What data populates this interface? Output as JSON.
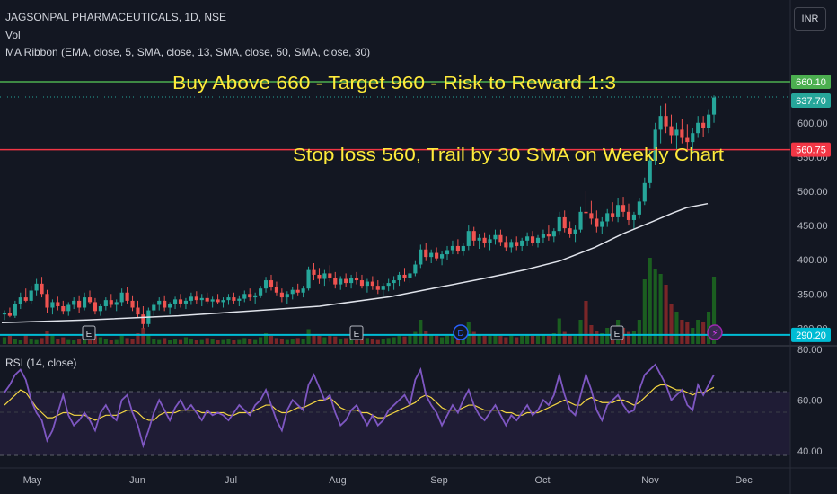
{
  "header": {
    "symbol_line": "JAGSONPAL PHARMACEUTICALS, 1D, NSE",
    "vol_label": "Vol",
    "ma_ribbon_label": "MA Ribbon (EMA, close, 5, SMA, close, 13, SMA, close, 50, SMA, close, 30)",
    "currency_button": "INR"
  },
  "annotations": {
    "headline": "Buy Above 660 - Target 960 - Risk to Reward 1:3",
    "stoploss": "Stop loss 560, Trail by 30 SMA on Weekly Chart"
  },
  "rsi": {
    "label": "RSI (14, close)"
  },
  "colors": {
    "background": "#131722",
    "up": "#26a69a",
    "down": "#ef5350",
    "annotation_text": "#ffeb3b",
    "target_line": "#4caf50",
    "stop_line": "#f23645",
    "low_line": "#00bcd4",
    "sma_line": "#e0e3eb",
    "rsi_line": "#7e57c2",
    "rsi_ma": "#f5d743"
  },
  "chart_data": {
    "type": "candlestick",
    "x_labels": [
      "May",
      "Jun",
      "Jul",
      "Aug",
      "Sep",
      "Oct",
      "Nov",
      "Dec"
    ],
    "price_axis_ticks": [
      "600.00",
      "550.00",
      "500.00",
      "450.00",
      "400.00",
      "350.00",
      "300.00"
    ],
    "price_markers": [
      {
        "value": 660.1,
        "label": "660.10",
        "color": "#4caf50",
        "kind": "horizontal-line"
      },
      {
        "value": 637.7,
        "label": "637.70",
        "color": "#26a69a",
        "kind": "last-price"
      },
      {
        "value": 560.75,
        "label": "560.75",
        "color": "#f23645",
        "kind": "horizontal-line"
      },
      {
        "value": 290.2,
        "label": "290.20",
        "color": "#00bcd4",
        "kind": "horizontal-line"
      }
    ],
    "price_range": [
      290,
      685
    ],
    "candles": [
      [
        320,
        326,
        312,
        322
      ],
      [
        322,
        330,
        316,
        318
      ],
      [
        318,
        340,
        315,
        335
      ],
      [
        335,
        352,
        328,
        345
      ],
      [
        345,
        358,
        338,
        340
      ],
      [
        340,
        362,
        336,
        355
      ],
      [
        355,
        372,
        348,
        365
      ],
      [
        365,
        375,
        345,
        350
      ],
      [
        350,
        356,
        322,
        330
      ],
      [
        330,
        342,
        320,
        338
      ],
      [
        338,
        346,
        326,
        332
      ],
      [
        332,
        340,
        320,
        325
      ],
      [
        325,
        338,
        318,
        334
      ],
      [
        334,
        345,
        328,
        340
      ],
      [
        340,
        348,
        322,
        330
      ],
      [
        330,
        352,
        326,
        345
      ],
      [
        345,
        355,
        335,
        338
      ],
      [
        338,
        344,
        320,
        325
      ],
      [
        325,
        336,
        318,
        332
      ],
      [
        332,
        345,
        326,
        341
      ],
      [
        341,
        350,
        330,
        334
      ],
      [
        334,
        342,
        325,
        338
      ],
      [
        338,
        358,
        332,
        352
      ],
      [
        352,
        360,
        336,
        340
      ],
      [
        340,
        348,
        325,
        330
      ],
      [
        330,
        340,
        315,
        320
      ],
      [
        320,
        332,
        300,
        306
      ],
      [
        306,
        330,
        302,
        326
      ],
      [
        326,
        338,
        318,
        334
      ],
      [
        334,
        345,
        326,
        340
      ],
      [
        340,
        348,
        325,
        330
      ],
      [
        330,
        338,
        320,
        335
      ],
      [
        335,
        346,
        328,
        342
      ],
      [
        342,
        350,
        330,
        336
      ],
      [
        336,
        344,
        328,
        340
      ],
      [
        340,
        352,
        334,
        346
      ],
      [
        346,
        354,
        336,
        341
      ],
      [
        341,
        350,
        332,
        344
      ],
      [
        344,
        352,
        336,
        339
      ],
      [
        339,
        346,
        330,
        342
      ],
      [
        342,
        350,
        335,
        338
      ],
      [
        338,
        345,
        330,
        341
      ],
      [
        341,
        350,
        334,
        345
      ],
      [
        345,
        352,
        336,
        340
      ],
      [
        340,
        348,
        332,
        343
      ],
      [
        343,
        355,
        338,
        350
      ],
      [
        350,
        358,
        340,
        345
      ],
      [
        345,
        352,
        336,
        348
      ],
      [
        348,
        362,
        344,
        358
      ],
      [
        358,
        375,
        352,
        370
      ],
      [
        370,
        378,
        355,
        360
      ],
      [
        360,
        368,
        348,
        352
      ],
      [
        352,
        358,
        338,
        345
      ],
      [
        345,
        354,
        335,
        350
      ],
      [
        350,
        360,
        342,
        356
      ],
      [
        356,
        365,
        348,
        352
      ],
      [
        352,
        362,
        345,
        358
      ],
      [
        358,
        390,
        355,
        385
      ],
      [
        385,
        395,
        370,
        378
      ],
      [
        378,
        388,
        365,
        372
      ],
      [
        372,
        385,
        362,
        380
      ],
      [
        380,
        392,
        368,
        374
      ],
      [
        374,
        382,
        358,
        364
      ],
      [
        364,
        376,
        356,
        372
      ],
      [
        372,
        380,
        360,
        366
      ],
      [
        366,
        378,
        358,
        374
      ],
      [
        374,
        382,
        364,
        370
      ],
      [
        370,
        378,
        358,
        362
      ],
      [
        362,
        372,
        352,
        368
      ],
      [
        368,
        376,
        356,
        362
      ],
      [
        362,
        370,
        350,
        356
      ],
      [
        356,
        366,
        348,
        362
      ],
      [
        362,
        372,
        354,
        366
      ],
      [
        366,
        376,
        356,
        370
      ],
      [
        370,
        382,
        362,
        378
      ],
      [
        378,
        388,
        368,
        374
      ],
      [
        374,
        384,
        366,
        380
      ],
      [
        380,
        398,
        376,
        393
      ],
      [
        393,
        422,
        388,
        415
      ],
      [
        415,
        425,
        398,
        404
      ],
      [
        404,
        415,
        395,
        410
      ],
      [
        410,
        418,
        398,
        402
      ],
      [
        402,
        412,
        392,
        408
      ],
      [
        408,
        420,
        400,
        414
      ],
      [
        414,
        428,
        408,
        420
      ],
      [
        420,
        430,
        408,
        412
      ],
      [
        412,
        425,
        406,
        420
      ],
      [
        420,
        450,
        414,
        442
      ],
      [
        442,
        448,
        420,
        428
      ],
      [
        428,
        438,
        416,
        432
      ],
      [
        432,
        440,
        418,
        424
      ],
      [
        424,
        436,
        414,
        430
      ],
      [
        430,
        444,
        422,
        436
      ],
      [
        436,
        444,
        420,
        426
      ],
      [
        426,
        434,
        412,
        418
      ],
      [
        418,
        430,
        410,
        426
      ],
      [
        426,
        434,
        414,
        420
      ],
      [
        420,
        432,
        412,
        428
      ],
      [
        428,
        440,
        420,
        434
      ],
      [
        434,
        442,
        420,
        424
      ],
      [
        424,
        436,
        418,
        432
      ],
      [
        432,
        444,
        424,
        438
      ],
      [
        438,
        450,
        428,
        434
      ],
      [
        434,
        446,
        426,
        442
      ],
      [
        442,
        470,
        436,
        462
      ],
      [
        462,
        472,
        440,
        446
      ],
      [
        446,
        456,
        432,
        438
      ],
      [
        438,
        450,
        426,
        444
      ],
      [
        444,
        478,
        440,
        470
      ],
      [
        470,
        500,
        458,
        468
      ],
      [
        468,
        486,
        452,
        460
      ],
      [
        460,
        472,
        440,
        448
      ],
      [
        448,
        462,
        438,
        456
      ],
      [
        456,
        474,
        448,
        468
      ],
      [
        468,
        484,
        456,
        462
      ],
      [
        462,
        490,
        455,
        480
      ],
      [
        480,
        492,
        462,
        470
      ],
      [
        470,
        482,
        450,
        458
      ],
      [
        458,
        470,
        444,
        466
      ],
      [
        466,
        490,
        460,
        485
      ],
      [
        485,
        520,
        480,
        512
      ],
      [
        512,
        560,
        505,
        545
      ],
      [
        545,
        600,
        538,
        590
      ],
      [
        590,
        625,
        570,
        610
      ],
      [
        610,
        628,
        585,
        595
      ],
      [
        595,
        612,
        570,
        582
      ],
      [
        582,
        600,
        560,
        590
      ],
      [
        590,
        606,
        570,
        578
      ],
      [
        578,
        598,
        560,
        572
      ],
      [
        572,
        592,
        555,
        585
      ],
      [
        585,
        610,
        578,
        600
      ],
      [
        600,
        610,
        580,
        592
      ],
      [
        592,
        620,
        585,
        612
      ],
      [
        612,
        640,
        600,
        637
      ]
    ],
    "sma30": [
      [
        0,
        308
      ],
      [
        0.12,
        312
      ],
      [
        0.25,
        318
      ],
      [
        0.35,
        325
      ],
      [
        0.45,
        332
      ],
      [
        0.55,
        346
      ],
      [
        0.62,
        360
      ],
      [
        0.68,
        372
      ],
      [
        0.74,
        385
      ],
      [
        0.79,
        398
      ],
      [
        0.84,
        418
      ],
      [
        0.88,
        438
      ],
      [
        0.92,
        455
      ],
      [
        0.95,
        468
      ],
      [
        0.97,
        476
      ],
      [
        1.0,
        482
      ]
    ],
    "volume": [
      0.25,
      0.3,
      0.2,
      0.15,
      0.35,
      0.2,
      0.18,
      0.22,
      0.5,
      0.3,
      0.2,
      0.25,
      0.18,
      0.15,
      0.2,
      0.3,
      0.22,
      0.35,
      0.25,
      0.2,
      0.15,
      0.18,
      0.3,
      0.22,
      0.2,
      0.4,
      0.6,
      0.35,
      0.2,
      0.18,
      0.22,
      0.15,
      0.2,
      0.18,
      0.25,
      0.2,
      0.15,
      0.18,
      0.22,
      0.2,
      0.15,
      0.18,
      0.2,
      0.16,
      0.18,
      0.22,
      0.2,
      0.18,
      0.25,
      0.4,
      0.3,
      0.22,
      0.2,
      0.18,
      0.2,
      0.22,
      0.2,
      0.55,
      0.35,
      0.3,
      0.25,
      0.3,
      0.28,
      0.2,
      0.22,
      0.2,
      0.18,
      0.2,
      0.22,
      0.2,
      0.18,
      0.2,
      0.22,
      0.25,
      0.3,
      0.28,
      0.3,
      0.45,
      0.9,
      0.5,
      0.35,
      0.3,
      0.25,
      0.3,
      0.35,
      0.3,
      0.3,
      0.8,
      0.45,
      0.35,
      0.3,
      0.3,
      0.35,
      0.3,
      0.25,
      0.3,
      0.25,
      0.3,
      0.35,
      0.3,
      0.3,
      0.35,
      0.3,
      0.4,
      0.95,
      0.45,
      0.35,
      0.3,
      0.9,
      1.6,
      0.7,
      0.5,
      0.4,
      0.6,
      0.5,
      0.9,
      0.6,
      0.45,
      0.5,
      0.9,
      2.4,
      3.2,
      2.8,
      2.6,
      2.2,
      1.5,
      1.2,
      0.9,
      0.8,
      0.6,
      0.9,
      0.8,
      1.2,
      2.5
    ],
    "rsi": {
      "ylim": [
        30,
        80
      ],
      "ticks": [
        "80.00",
        "60.00",
        "40.00"
      ],
      "values": [
        63,
        66,
        70,
        72,
        68,
        60,
        55,
        52,
        44,
        48,
        55,
        62,
        54,
        50,
        52,
        55,
        52,
        48,
        55,
        58,
        54,
        52,
        60,
        62,
        55,
        50,
        42,
        48,
        55,
        60,
        56,
        52,
        57,
        60,
        56,
        58,
        55,
        52,
        56,
        54,
        55,
        54,
        52,
        55,
        58,
        56,
        54,
        58,
        60,
        64,
        58,
        52,
        48,
        56,
        60,
        58,
        56,
        66,
        70,
        65,
        60,
        62,
        55,
        50,
        52,
        56,
        58,
        54,
        50,
        54,
        50,
        52,
        56,
        58,
        60,
        62,
        58,
        68,
        72,
        62,
        58,
        55,
        50,
        54,
        58,
        55,
        60,
        64,
        58,
        54,
        52,
        55,
        58,
        54,
        50,
        54,
        52,
        55,
        58,
        54,
        56,
        60,
        58,
        62,
        70,
        62,
        56,
        54,
        62,
        70,
        64,
        56,
        52,
        58,
        60,
        62,
        58,
        55,
        56,
        64,
        70,
        72,
        74,
        70,
        66,
        60,
        62,
        64,
        58,
        56,
        66,
        62,
        66,
        70
      ],
      "ma_values": [
        58,
        60,
        62,
        64,
        63,
        60,
        57,
        55,
        53,
        53,
        54,
        55,
        55,
        54,
        54,
        54,
        53,
        52,
        53,
        54,
        54,
        54,
        55,
        56,
        56,
        55,
        53,
        52,
        52,
        54,
        55,
        55,
        55,
        56,
        56,
        56,
        56,
        55,
        55,
        55,
        55,
        55,
        54,
        54,
        55,
        55,
        55,
        56,
        57,
        58,
        58,
        56,
        55,
        55,
        56,
        57,
        57,
        58,
        59,
        60,
        60,
        61,
        59,
        57,
        56,
        56,
        56,
        55,
        55,
        54,
        53,
        53,
        54,
        55,
        56,
        57,
        58,
        59,
        61,
        62,
        61,
        59,
        57,
        56,
        56,
        56,
        57,
        58,
        58,
        57,
        56,
        56,
        56,
        56,
        55,
        55,
        54,
        54,
        55,
        55,
        55,
        56,
        57,
        58,
        59,
        60,
        59,
        58,
        58,
        60,
        61,
        60,
        59,
        59,
        59,
        60,
        60,
        59,
        58,
        59,
        61,
        63,
        65,
        66,
        66,
        65,
        64,
        64,
        63,
        62,
        63,
        63,
        64,
        65
      ]
    }
  }
}
